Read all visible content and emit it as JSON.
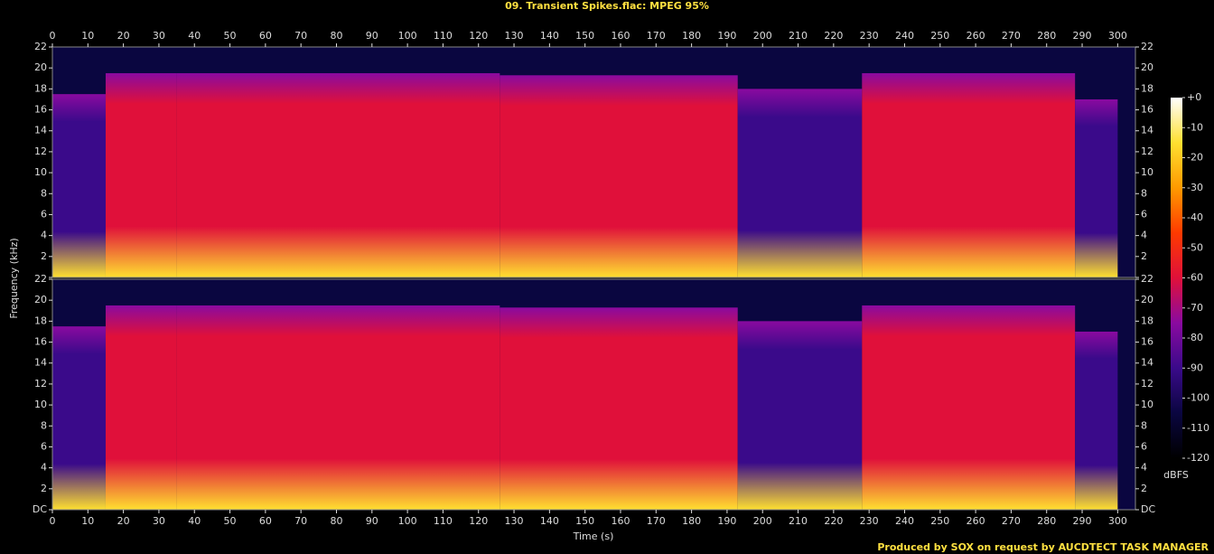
{
  "chart_data": {
    "type": "spectrogram",
    "title": "09. Transient Spikes.flac: MPEG 95%",
    "x_label": "Time (s)",
    "y_label": "Frequency (kHz)",
    "colorbar_label": "dBFS",
    "footer": "Produced by SOX on request by AUCDTECT TASK MANAGER",
    "xlim": [
      0,
      305
    ],
    "xticks": [
      0,
      10,
      20,
      30,
      40,
      50,
      60,
      70,
      80,
      90,
      100,
      110,
      120,
      130,
      140,
      150,
      160,
      170,
      180,
      190,
      200,
      210,
      220,
      230,
      240,
      250,
      260,
      270,
      280,
      290,
      300
    ],
    "ylim": [
      0,
      22
    ],
    "yticks": [
      {
        "value": 0,
        "label": "DC"
      },
      2,
      4,
      6,
      8,
      10,
      12,
      14,
      16,
      18,
      20,
      22
    ],
    "clim": [
      -120,
      0
    ],
    "cticks": [
      {
        "value": 0,
        "label": "+0"
      },
      -10,
      -20,
      -30,
      -40,
      -50,
      -60,
      -70,
      -80,
      -90,
      -100,
      -110,
      -120
    ],
    "colormap": [
      "#000000",
      "#0a0640",
      "#3a0a8a",
      "#8a0aa0",
      "#e0103a",
      "#ff3a00",
      "#ff9a00",
      "#ffe030",
      "#ffffff"
    ],
    "channels": 2,
    "segments": [
      {
        "start": 0,
        "end": 15,
        "cutoff": 17.5,
        "level": -85
      },
      {
        "start": 15,
        "end": 35,
        "cutoff": 19.5,
        "level": -65
      },
      {
        "start": 35,
        "end": 126,
        "cutoff": 19.5,
        "level": -55
      },
      {
        "start": 126,
        "end": 193,
        "cutoff": 19.3,
        "level": -57
      },
      {
        "start": 193,
        "end": 228,
        "cutoff": 18,
        "level": -85
      },
      {
        "start": 228,
        "end": 288,
        "cutoff": 19.5,
        "level": -55
      },
      {
        "start": 288,
        "end": 300,
        "cutoff": 17,
        "level": -90
      }
    ]
  }
}
